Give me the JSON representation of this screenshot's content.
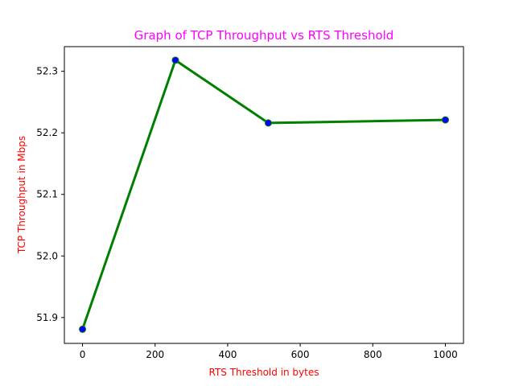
{
  "chart_data": {
    "type": "line",
    "title": "Graph of TCP Throughput vs RTS Threshold",
    "xlabel": "RTS Threshold in bytes",
    "ylabel": "TCP Throughput in Mbps",
    "x": [
      0,
      256,
      512,
      1000
    ],
    "series": [
      {
        "values": [
          51.881,
          52.318,
          52.216,
          52.221
        ]
      }
    ],
    "xlim": [
      -50,
      1050
    ],
    "ylim": [
      51.858,
      52.34
    ],
    "xticks": [
      0,
      200,
      400,
      600,
      800,
      1000
    ],
    "yticks": [
      51.9,
      52.0,
      52.1,
      52.2,
      52.3
    ],
    "xtick_labels": [
      "0",
      "200",
      "400",
      "600",
      "800",
      "1000"
    ],
    "ytick_labels": [
      "51.9",
      "52.0",
      "52.1",
      "52.2",
      "52.3"
    ],
    "grid": false,
    "colors": {
      "title": "#ff00ff",
      "axis_labels": "#ff0000",
      "line": "#008000",
      "marker_fill": "#0000ff",
      "marker_edge": "#008000"
    }
  }
}
